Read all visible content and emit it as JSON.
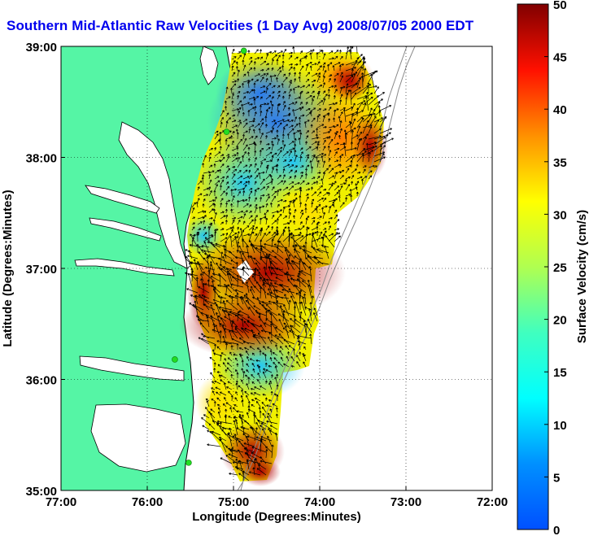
{
  "title": "Southern Mid-Atlantic Raw Velocities (1 Day Avg) 2008/07/05 2000 EDT",
  "map": {
    "x_axis": {
      "label": "Longitude (Degrees:Minutes)",
      "range": [
        -77,
        -72
      ],
      "ticks": [
        {
          "value": -77,
          "label": "77:00"
        },
        {
          "value": -76,
          "label": "76:00"
        },
        {
          "value": -75,
          "label": "75:00"
        },
        {
          "value": -74,
          "label": "74:00"
        },
        {
          "value": -73,
          "label": "73:00"
        },
        {
          "value": -72,
          "label": "72:00"
        }
      ]
    },
    "y_axis": {
      "label": "Latitude (Degrees:Minutes)",
      "range": [
        35,
        39
      ],
      "ticks": [
        {
          "value": 39,
          "label": "39:00"
        },
        {
          "value": 38,
          "label": "38:00"
        },
        {
          "value": 37,
          "label": "37:00"
        },
        {
          "value": 36,
          "label": "36:00"
        },
        {
          "value": 35,
          "label": "35:00"
        }
      ]
    },
    "grid": "dotted",
    "colors": {
      "land": "#55f5a5",
      "water": "#ffffff",
      "bathymetry": "#888888",
      "station": "#22dd22",
      "arrow": "#000000"
    },
    "stations": [
      {
        "lon": -74.88,
        "lat": 38.96
      },
      {
        "lon": -75.08,
        "lat": 38.23
      },
      {
        "lon": -75.68,
        "lat": 36.18
      },
      {
        "lon": -75.52,
        "lat": 35.25
      }
    ]
  },
  "colorbar": {
    "label": "Surface Velocity (cm/s)",
    "min": 0,
    "max": 50,
    "ticks": [
      {
        "value": 0,
        "label": "0"
      },
      {
        "value": 5,
        "label": "5"
      },
      {
        "value": 10,
        "label": "10"
      },
      {
        "value": 15,
        "label": "15"
      },
      {
        "value": 20,
        "label": "20"
      },
      {
        "value": 25,
        "label": "25"
      },
      {
        "value": 30,
        "label": "30"
      },
      {
        "value": 35,
        "label": "35"
      },
      {
        "value": 40,
        "label": "40"
      },
      {
        "value": 45,
        "label": "45"
      },
      {
        "value": 50,
        "label": "50"
      }
    ]
  }
}
